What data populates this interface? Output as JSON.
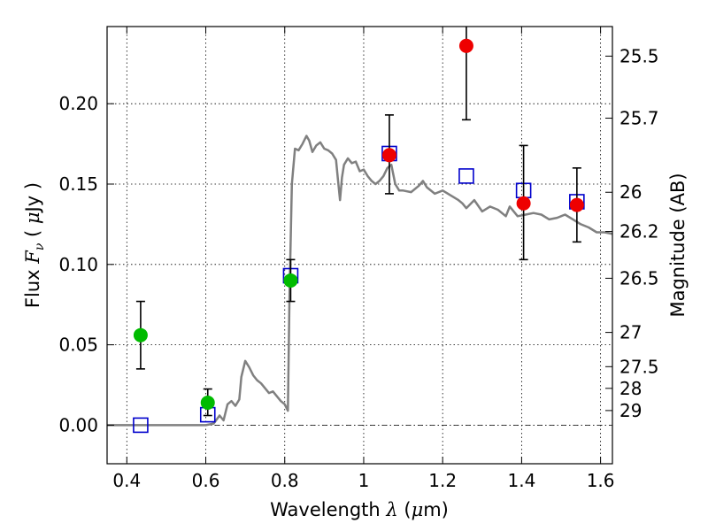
{
  "chart_data": {
    "type": "scatter",
    "xlabel": {
      "prefix": "Wavelength  ",
      "symbol": "λ",
      "suffix": " (",
      "unit_symbol": "μ",
      "unit": "m)"
    },
    "ylabel": {
      "prefix": "Flux  ",
      "symbol": "F",
      "subscript": "ν",
      "mid": "  ( ",
      "unit_symbol": "μ",
      "unit": "Jy )"
    },
    "y2label": "Magnitude (AB)",
    "xlim": [
      0.35,
      1.63
    ],
    "ylim": [
      -0.024,
      0.248
    ],
    "grid": true,
    "x_ticks": [
      {
        "v": 0.4,
        "label": "0.4"
      },
      {
        "v": 0.6,
        "label": "0.6"
      },
      {
        "v": 0.8,
        "label": "0.8"
      },
      {
        "v": 1.0,
        "label": "1"
      },
      {
        "v": 1.2,
        "label": "1.2"
      },
      {
        "v": 1.4,
        "label": "1.4"
      },
      {
        "v": 1.6,
        "label": "1.6"
      }
    ],
    "y_ticks": [
      {
        "v": 0.0,
        "label": "0.00"
      },
      {
        "v": 0.05,
        "label": "0.05"
      },
      {
        "v": 0.1,
        "label": "0.10"
      },
      {
        "v": 0.15,
        "label": "0.15"
      },
      {
        "v": 0.2,
        "label": "0.20"
      }
    ],
    "y2_ticks": [
      {
        "label": "25.5",
        "flux": 0.2296
      },
      {
        "label": "25.7",
        "flux": 0.191
      },
      {
        "label": "26",
        "flux": 0.1449
      },
      {
        "label": "26.2",
        "flux": 0.1205
      },
      {
        "label": "26.5",
        "flux": 0.0914
      },
      {
        "label": "27",
        "flux": 0.0577
      },
      {
        "label": "27.5",
        "flux": 0.0364
      },
      {
        "label": "28",
        "flux": 0.0229
      },
      {
        "label": "29",
        "flux": 0.0091
      }
    ],
    "series": [
      {
        "kind": "line",
        "color": "#808080",
        "points": [
          [
            0.35,
            0.0
          ],
          [
            0.6,
            0.0
          ],
          [
            0.62,
            0.001
          ],
          [
            0.635,
            0.006
          ],
          [
            0.645,
            0.003
          ],
          [
            0.655,
            0.013
          ],
          [
            0.665,
            0.015
          ],
          [
            0.675,
            0.012
          ],
          [
            0.68,
            0.014
          ],
          [
            0.685,
            0.016
          ],
          [
            0.69,
            0.03
          ],
          [
            0.7,
            0.04
          ],
          [
            0.71,
            0.036
          ],
          [
            0.72,
            0.031
          ],
          [
            0.73,
            0.028
          ],
          [
            0.74,
            0.026
          ],
          [
            0.75,
            0.023
          ],
          [
            0.76,
            0.02
          ],
          [
            0.77,
            0.021
          ],
          [
            0.78,
            0.018
          ],
          [
            0.79,
            0.015
          ],
          [
            0.8,
            0.013
          ],
          [
            0.808,
            0.009
          ],
          [
            0.812,
            0.08
          ],
          [
            0.818,
            0.15
          ],
          [
            0.826,
            0.172
          ],
          [
            0.835,
            0.171
          ],
          [
            0.845,
            0.175
          ],
          [
            0.855,
            0.18
          ],
          [
            0.862,
            0.177
          ],
          [
            0.87,
            0.17
          ],
          [
            0.88,
            0.174
          ],
          [
            0.89,
            0.176
          ],
          [
            0.9,
            0.172
          ],
          [
            0.91,
            0.171
          ],
          [
            0.92,
            0.169
          ],
          [
            0.93,
            0.165
          ],
          [
            0.935,
            0.152
          ],
          [
            0.94,
            0.14
          ],
          [
            0.945,
            0.154
          ],
          [
            0.95,
            0.162
          ],
          [
            0.96,
            0.166
          ],
          [
            0.97,
            0.163
          ],
          [
            0.98,
            0.164
          ],
          [
            0.99,
            0.158
          ],
          [
            1.0,
            0.159
          ],
          [
            1.01,
            0.155
          ],
          [
            1.02,
            0.152
          ],
          [
            1.03,
            0.15
          ],
          [
            1.04,
            0.152
          ],
          [
            1.05,
            0.155
          ],
          [
            1.06,
            0.16
          ],
          [
            1.07,
            0.162
          ],
          [
            1.08,
            0.15
          ],
          [
            1.09,
            0.146
          ],
          [
            1.1,
            0.146
          ],
          [
            1.12,
            0.145
          ],
          [
            1.14,
            0.149
          ],
          [
            1.15,
            0.152
          ],
          [
            1.16,
            0.148
          ],
          [
            1.18,
            0.144
          ],
          [
            1.2,
            0.146
          ],
          [
            1.22,
            0.143
          ],
          [
            1.24,
            0.14
          ],
          [
            1.25,
            0.138
          ],
          [
            1.26,
            0.135
          ],
          [
            1.28,
            0.14
          ],
          [
            1.3,
            0.133
          ],
          [
            1.32,
            0.136
          ],
          [
            1.34,
            0.134
          ],
          [
            1.36,
            0.13
          ],
          [
            1.37,
            0.136
          ],
          [
            1.39,
            0.13
          ],
          [
            1.41,
            0.131
          ],
          [
            1.43,
            0.132
          ],
          [
            1.45,
            0.131
          ],
          [
            1.47,
            0.128
          ],
          [
            1.49,
            0.129
          ],
          [
            1.51,
            0.131
          ],
          [
            1.53,
            0.128
          ],
          [
            1.55,
            0.125
          ],
          [
            1.57,
            0.123
          ],
          [
            1.59,
            0.12
          ],
          [
            1.61,
            0.12
          ],
          [
            1.63,
            0.119
          ]
        ]
      },
      {
        "kind": "squares",
        "color": "#0000cc",
        "points": [
          [
            0.435,
            0.0
          ],
          [
            0.605,
            0.0065
          ],
          [
            0.815,
            0.093
          ],
          [
            1.065,
            0.169
          ],
          [
            1.26,
            0.155
          ],
          [
            1.405,
            0.146
          ],
          [
            1.54,
            0.139
          ]
        ]
      },
      {
        "kind": "points_with_errorbars",
        "color": "#00bb00",
        "points": [
          {
            "x": 0.435,
            "y": 0.056,
            "lo": 0.035,
            "hi": 0.077
          },
          {
            "x": 0.605,
            "y": 0.014,
            "lo": 0.006,
            "hi": 0.0225
          },
          {
            "x": 0.815,
            "y": 0.09,
            "lo": 0.077,
            "hi": 0.103
          }
        ]
      },
      {
        "kind": "points_with_errorbars",
        "color": "#ee0000",
        "points": [
          {
            "x": 1.065,
            "y": 0.168,
            "lo": 0.144,
            "hi": 0.193
          },
          {
            "x": 1.26,
            "y": 0.236,
            "lo": 0.19,
            "hi": 0.255
          },
          {
            "x": 1.405,
            "y": 0.138,
            "lo": 0.103,
            "hi": 0.174
          },
          {
            "x": 1.54,
            "y": 0.137,
            "lo": 0.114,
            "hi": 0.16
          }
        ]
      }
    ]
  }
}
